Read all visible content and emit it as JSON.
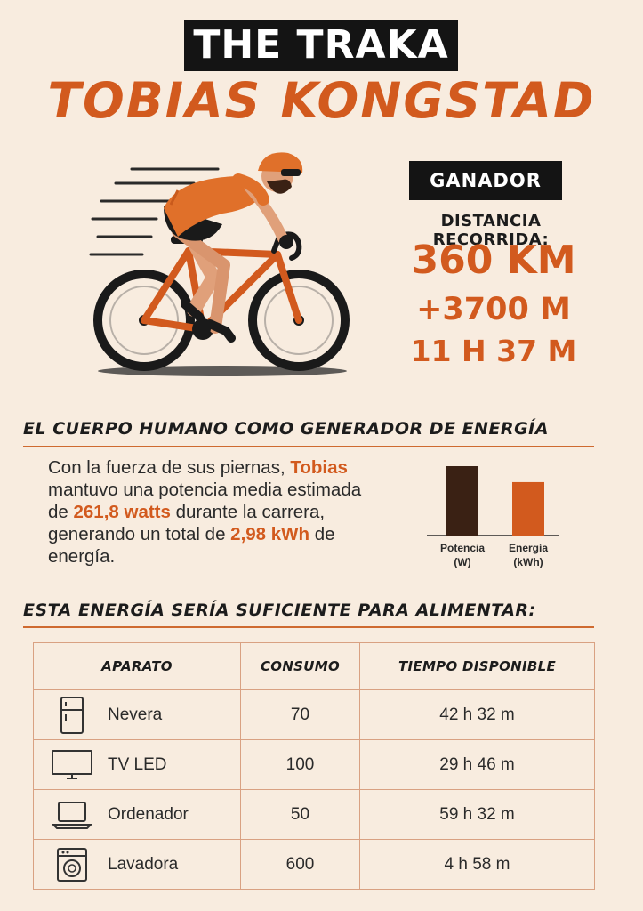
{
  "header": {
    "event": "THE TRAKA",
    "winner_name": "TOBIAS KONGSTAD"
  },
  "result": {
    "badge": "GANADOR",
    "distance_label": "DISTANCIA RECORRIDA:",
    "distance": "360 KM",
    "elevation": "+3700 M",
    "time": "11 H 37 M"
  },
  "energy_section": {
    "title": "EL CUERPO HUMANO COMO GENERADOR DE ENERGÍA",
    "p1": "Con la fuerza de sus piernas,",
    "name": "Tobias",
    "p2": " mantuvo una potencia media estimada de ",
    "power": "261,8 watts",
    "p3": " durante la carrera, generando un total de ",
    "energy": "2,98 kWh",
    "p4": " de energía."
  },
  "chart_data": {
    "type": "bar",
    "categories": [
      "Potencia (W)",
      "Energía (kWh)"
    ],
    "category_lines": [
      [
        "Potencia",
        "(W)"
      ],
      [
        "Energía",
        "(kWh)"
      ]
    ],
    "values": [
      261.8,
      2.98
    ],
    "colors": [
      "#3a2114",
      "#d25a1e"
    ],
    "relative_heights": [
      1.0,
      0.77
    ],
    "title": "",
    "xlabel": "",
    "ylabel": ""
  },
  "appliances_section": {
    "title": "ESTA ENERGÍA SERÍA SUFICIENTE PARA ALIMENTAR:",
    "headers": [
      "APARATO",
      "CONSUMO",
      "TIEMPO DISPONIBLE"
    ],
    "rows": [
      {
        "icon": "fridge-icon",
        "name": "Nevera",
        "consumption": "70",
        "time": "42 h 32 m"
      },
      {
        "icon": "tv-icon",
        "name": "TV LED",
        "consumption": "100",
        "time": "29 h 46 m"
      },
      {
        "icon": "laptop-icon",
        "name": "Ordenador",
        "consumption": "50",
        "time": "59 h 32 m"
      },
      {
        "icon": "washing-machine-icon",
        "name": "Lavadora",
        "consumption": "600",
        "time": "4 h 58 m"
      }
    ]
  },
  "colors": {
    "accent": "#d25a1e",
    "dark": "#141414",
    "background": "#f8ecdf"
  }
}
